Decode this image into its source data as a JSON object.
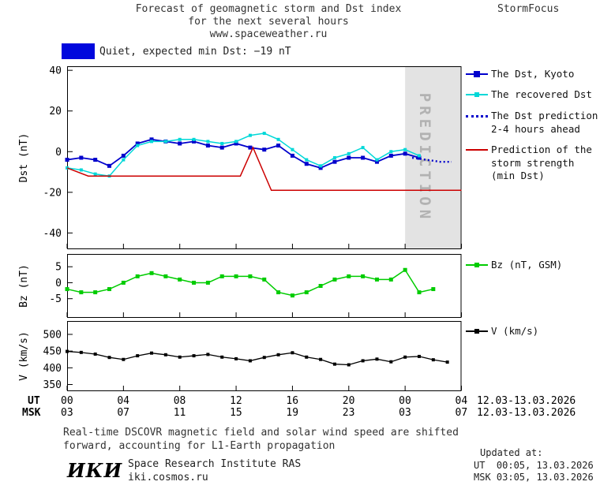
{
  "header": {
    "title_line1": "Forecast of geomagnetic storm and Dst index",
    "title_line2": "for the next several hours",
    "title_line3": "www.spaceweather.ru",
    "brand": "StormFocus"
  },
  "status": {
    "label": "Quiet, expected min Dst: −19 nT"
  },
  "legend": {
    "dst_kyoto": "The Dst, Kyoto",
    "recovered": "The recovered Dst",
    "prediction_l1": "The Dst prediction",
    "prediction_l2": "2-4 hours ahead",
    "storm_l1": "Prediction of the",
    "storm_l2": "storm strength",
    "storm_l3": "(min Dst)",
    "bz": "Bz (nT, GSM)",
    "v": "V (km/s)"
  },
  "axes": {
    "ut_label": "UT",
    "msk_label": "MSK",
    "ut_ticks": [
      "00",
      "04",
      "08",
      "12",
      "16",
      "20",
      "00",
      "04"
    ],
    "msk_ticks": [
      "03",
      "07",
      "11",
      "15",
      "19",
      "23",
      "03",
      "07"
    ],
    "ut_dates": "12.03-13.03.2026",
    "msk_dates": "12.03-13.03.2026"
  },
  "footer": {
    "note_l1": "Real-time DSCOVR magnetic field and solar wind speed are shifted",
    "note_l2": "forward, accounting for L1-Earth propagation",
    "updated_label": "Updated at:",
    "updated_ut": "UT  00:05, 13.03.2026",
    "updated_msk": "MSK 03:05, 13.03.2026",
    "logo": "ИКИ",
    "institute": "Space Research Institute RAS",
    "site": "iki.cosmos.ru"
  },
  "colors": {
    "dst_kyoto": "#0000cc",
    "recovered": "#00d8d8",
    "prediction": "#0000cc",
    "storm": "#cc0000",
    "bz": "#00cc00",
    "v": "#000000",
    "status_box": "#0008dd",
    "zone": "#e3e3e3"
  },
  "chart_data": [
    {
      "name": "dst",
      "type": "line",
      "ylabel": "Dst (nT)",
      "ylim": [
        -48,
        42
      ],
      "yticks": [
        40,
        20,
        0,
        -20,
        -40
      ],
      "xlim_hours": [
        0,
        28
      ],
      "xticks_hours": [
        0,
        4,
        8,
        12,
        16,
        20,
        24,
        28
      ],
      "prediction_zone_hours": [
        24,
        28
      ],
      "zone_label": "PREDICTION",
      "series": [
        {
          "key": "dst-kyoto",
          "name": "The Dst, Kyoto",
          "color_key": "dst_kyoto",
          "marker": "square",
          "marker_size": 5,
          "width": 1.8,
          "x": [
            0,
            1,
            2,
            3,
            4,
            5,
            6,
            7,
            8,
            9,
            10,
            11,
            12,
            13,
            14,
            15,
            16,
            17,
            18,
            19,
            20,
            21,
            22,
            23,
            24,
            25
          ],
          "values": [
            -4,
            -3,
            -4,
            -7,
            -2,
            4,
            6,
            5,
            4,
            5,
            3,
            2,
            4,
            2,
            1,
            3,
            -2,
            -6,
            -8,
            -5,
            -3,
            -3,
            -5,
            -2,
            -1,
            -3
          ]
        },
        {
          "key": "recovered-dst",
          "name": "The recovered Dst",
          "color_key": "recovered",
          "marker": "square",
          "marker_size": 4,
          "width": 1.5,
          "x": [
            0,
            1,
            2,
            3,
            4,
            5,
            6,
            7,
            8,
            9,
            10,
            11,
            12,
            13,
            14,
            15,
            16,
            17,
            18,
            19,
            20,
            21,
            22,
            23,
            24,
            25
          ],
          "values": [
            -8,
            -9,
            -11,
            -12,
            -4,
            3,
            5,
            5,
            6,
            6,
            5,
            4,
            5,
            8,
            9,
            6,
            1,
            -4,
            -7,
            -3,
            -1,
            2,
            -4,
            0,
            1,
            -2
          ]
        },
        {
          "key": "dst-prediction",
          "name": "The Dst prediction 2-4 hours ahead",
          "color_key": "prediction",
          "style": "dotted",
          "width": 2.4,
          "x": [
            24.5,
            25.5,
            26.5,
            27.3
          ],
          "values": [
            -3,
            -4,
            -5,
            -5
          ]
        },
        {
          "key": "storm-prediction",
          "name": "Prediction of the storm strength (min Dst)",
          "color_key": "storm",
          "width": 1.5,
          "x": [
            0,
            1.5,
            12.3,
            13.2,
            14.5,
            28
          ],
          "values": [
            -8,
            -12,
            -12,
            2,
            -19,
            -19
          ]
        }
      ]
    },
    {
      "name": "bz",
      "type": "line",
      "ylabel": "Bz (nT)",
      "ylim": [
        -11,
        9
      ],
      "yticks": [
        5,
        0,
        -5
      ],
      "xlim_hours": [
        0,
        28
      ],
      "xticks_hours": [
        0,
        4,
        8,
        12,
        16,
        20,
        24,
        28
      ],
      "series": [
        {
          "key": "bz",
          "name": "Bz (nT, GSM)",
          "color_key": "bz",
          "marker": "square",
          "marker_size": 5,
          "width": 1.5,
          "x": [
            0,
            1,
            2,
            3,
            4,
            5,
            6,
            7,
            8,
            9,
            10,
            11,
            12,
            13,
            14,
            15,
            16,
            17,
            18,
            19,
            20,
            21,
            22,
            23,
            24,
            25,
            26
          ],
          "values": [
            -2,
            -3,
            -3,
            -2,
            0,
            2,
            3,
            2,
            1,
            0,
            0,
            2,
            2,
            2,
            1,
            -3,
            -4,
            -3,
            -1,
            1,
            2,
            2,
            1,
            1,
            4,
            -3,
            -2
          ]
        }
      ]
    },
    {
      "name": "v",
      "type": "line",
      "ylabel": "V (km/s)",
      "ylim": [
        330,
        540
      ],
      "yticks": [
        500,
        450,
        400,
        350
      ],
      "xlim_hours": [
        0,
        28
      ],
      "xticks_hours": [
        0,
        4,
        8,
        12,
        16,
        20,
        24,
        28
      ],
      "series": [
        {
          "key": "v",
          "name": "V (km/s)",
          "color_key": "v",
          "marker": "square",
          "marker_size": 4,
          "width": 1.3,
          "x": [
            0,
            1,
            2,
            3,
            4,
            5,
            6,
            7,
            8,
            9,
            10,
            11,
            12,
            13,
            14,
            15,
            16,
            17,
            18,
            19,
            20,
            21,
            22,
            23,
            24,
            25,
            26,
            27
          ],
          "values": [
            449,
            446,
            441,
            431,
            425,
            436,
            444,
            439,
            432,
            436,
            440,
            432,
            427,
            421,
            431,
            439,
            445,
            432,
            425,
            411,
            409,
            421,
            426,
            418,
            432,
            434,
            424,
            417
          ]
        }
      ]
    }
  ]
}
